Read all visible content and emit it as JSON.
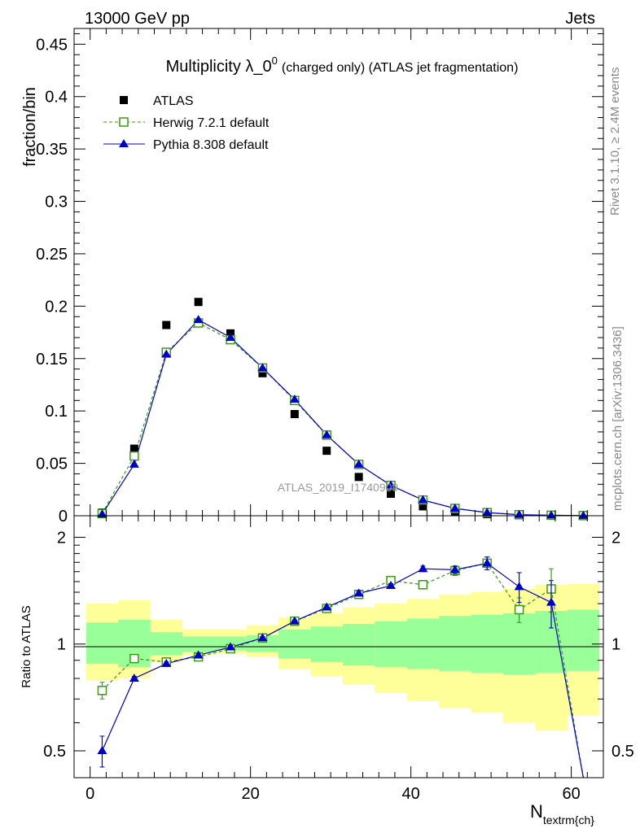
{
  "header": {
    "left": "13000 GeV pp",
    "right": "Jets"
  },
  "side_labels": {
    "rivet": "Rivet 3.1.10, ≥ 2.4M events",
    "mcplots": "mcplots.cern.ch [arXiv:1306.3436]"
  },
  "watermark": "ATLAS_2019_I1740909",
  "chart_data": [
    {
      "type": "scatter",
      "title": "Multiplicity λ_0",
      "title_sup": "0",
      "title_suffix": "(charged only) (ATLAS jet fragmentation)",
      "ylabel": "fraction/bin",
      "ylim": [
        0,
        0.465
      ],
      "yticks": [
        "0",
        "0.05",
        "0.1",
        "0.15",
        "0.2",
        "0.25",
        "0.3",
        "0.35",
        "0.4",
        "0.45"
      ],
      "legend": [
        "ATLAS",
        "Herwig 7.2.1 default",
        "Pythia 8.308 default"
      ],
      "legend_position": "top-left",
      "colors": {
        "data": "#000000",
        "herwig": "#3a9a10",
        "pythia": "#0000cc"
      },
      "x": [
        1.5,
        5.5,
        9.5,
        13.5,
        17.5,
        21.5,
        25.5,
        29.5,
        33.5,
        37.5,
        41.5,
        45.5,
        49.5,
        53.5,
        57.5,
        61.5
      ],
      "series": [
        {
          "name": "ATLAS",
          "values": [
            0.003,
            0.064,
            0.182,
            0.204,
            0.174,
            0.136,
            0.097,
            0.062,
            0.037,
            0.021,
            0.009,
            0.004,
            0.0015,
            0.0006,
            0.0003,
            0.0003
          ]
        },
        {
          "name": "Herwig 7.2.1 default",
          "values": [
            0.002,
            0.057,
            0.156,
            0.184,
            0.168,
            0.141,
            0.11,
            0.077,
            0.049,
            0.029,
            0.015,
            0.007,
            0.003,
            0.001,
            0.0005,
            0.0001
          ]
        },
        {
          "name": "Pythia 8.308 default",
          "values": [
            0.0015,
            0.049,
            0.154,
            0.187,
            0.17,
            0.141,
            0.111,
            0.077,
            0.049,
            0.029,
            0.015,
            0.007,
            0.003,
            0.001,
            0.0005,
            0.0001
          ]
        }
      ]
    },
    {
      "type": "line",
      "ylabel": "Ratio to ATLAS",
      "xlabel": "N",
      "xlabel_sub": "textrm{ch}",
      "ylim": [
        0.42,
        2.3
      ],
      "ytick_labels": [
        "0.5",
        "1",
        "2"
      ],
      "xlim": [
        -2,
        64
      ],
      "xticks": [
        "0",
        "20",
        "40",
        "60"
      ],
      "bin_edges": [
        -0.5,
        3.5,
        7.5,
        11.5,
        15.5,
        19.5,
        23.5,
        27.5,
        31.5,
        35.5,
        39.5,
        43.5,
        47.5,
        51.5,
        55.5,
        59.5,
        63.5
      ],
      "band_inner": [
        [
          0.88,
          1.15
        ],
        [
          0.86,
          1.17
        ],
        [
          0.93,
          1.08
        ],
        [
          0.95,
          1.05
        ],
        [
          0.96,
          1.05
        ],
        [
          0.95,
          1.06
        ],
        [
          0.91,
          1.1
        ],
        [
          0.89,
          1.12
        ],
        [
          0.87,
          1.14
        ],
        [
          0.86,
          1.16
        ],
        [
          0.85,
          1.18
        ],
        [
          0.84,
          1.2
        ],
        [
          0.83,
          1.21
        ],
        [
          0.82,
          1.22
        ],
        [
          0.83,
          1.24
        ],
        [
          0.84,
          1.25
        ]
      ],
      "band_outer": [
        [
          0.79,
          1.3
        ],
        [
          0.8,
          1.33
        ],
        [
          0.89,
          1.17
        ],
        [
          0.93,
          1.1
        ],
        [
          0.94,
          1.1
        ],
        [
          0.92,
          1.13
        ],
        [
          0.85,
          1.19
        ],
        [
          0.81,
          1.22
        ],
        [
          0.77,
          1.27
        ],
        [
          0.73,
          1.3
        ],
        [
          0.69,
          1.34
        ],
        [
          0.66,
          1.38
        ],
        [
          0.64,
          1.4
        ],
        [
          0.6,
          1.43
        ],
        [
          0.57,
          1.47
        ],
        [
          0.63,
          1.48
        ]
      ],
      "series": [
        {
          "name": "Herwig 7.2.1 default",
          "values": [
            0.74,
            0.91,
            0.89,
            0.92,
            0.97,
            1.04,
            1.16,
            1.26,
            1.38,
            1.51,
            1.47,
            1.61,
            1.69,
            1.25,
            1.43,
            0.1
          ],
          "err": [
            0.04,
            0.01,
            0.01,
            0.01,
            0.01,
            0.01,
            0.01,
            0.01,
            0.02,
            0.02,
            0.03,
            0.05,
            0.07,
            0.1,
            0.2,
            0
          ]
        },
        {
          "name": "Pythia 8.308 default",
          "values": [
            0.5,
            0.8,
            0.88,
            0.93,
            0.98,
            1.04,
            1.16,
            1.27,
            1.39,
            1.46,
            1.63,
            1.62,
            1.69,
            1.45,
            1.31,
            0.1
          ],
          "err": [
            0.05,
            0.01,
            0.01,
            0.01,
            0.01,
            0.01,
            0.01,
            0.01,
            0.02,
            0.02,
            0.03,
            0.04,
            0.07,
            0.14,
            0.2,
            0
          ]
        }
      ]
    }
  ]
}
